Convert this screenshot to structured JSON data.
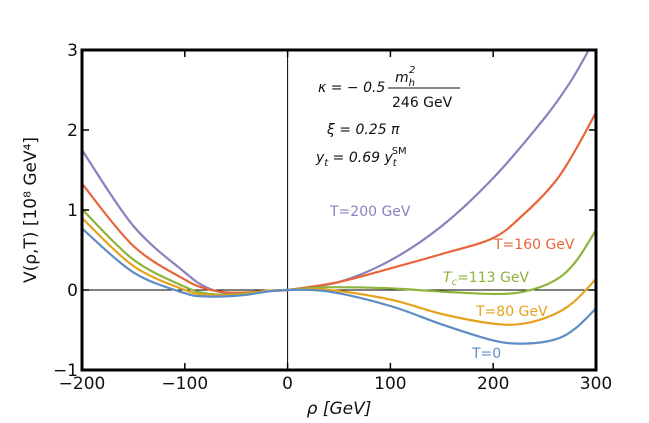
{
  "chart_data": {
    "type": "line",
    "xlabel": "ρ [GeV]",
    "ylabel": "V(ρ,T) [10⁸ GeV⁴]",
    "xlim": [
      -200,
      300
    ],
    "ylim": [
      -1,
      3
    ],
    "x_ticks": [
      -200,
      -100,
      0,
      100,
      200,
      300
    ],
    "y_ticks": [
      -1,
      0,
      1,
      2,
      3
    ],
    "tick_labels": {
      "x": [
        "−200",
        "−100",
        "0",
        "100",
        "200",
        "300"
      ],
      "y": [
        "−1",
        "0",
        "1",
        "2",
        "3"
      ]
    },
    "grid": false,
    "annotations": {
      "kappa_prefix": "κ = − 0.5",
      "kappa_num": "m",
      "kappa_num_sub": "h",
      "kappa_num_sup": "2",
      "kappa_den": "246  GeV",
      "xi": "ξ = 0.25 π",
      "yt_prefix": "y",
      "yt_sub": "t",
      "yt_mid": " = 0.69 y",
      "yt_sub2": "t",
      "yt_sup": "SM"
    },
    "series": [
      {
        "name": "T=200 GeV",
        "color": "#8c7fbc",
        "points": [
          [
            -200,
            1.75
          ],
          [
            -150,
            0.8
          ],
          [
            -100,
            0.22
          ],
          [
            -80,
            0.04
          ],
          [
            -60,
            -0.04
          ],
          [
            -40,
            -0.04
          ],
          [
            -20,
            -0.01
          ],
          [
            0,
            0
          ],
          [
            50,
            0.1
          ],
          [
            100,
            0.37
          ],
          [
            150,
            0.8
          ],
          [
            200,
            1.4
          ],
          [
            250,
            2.15
          ],
          [
            275,
            2.6
          ],
          [
            293,
            3.0
          ]
        ]
      },
      {
        "name": "T=160 GeV",
        "color": "#e8653b",
        "points": [
          [
            -200,
            1.33
          ],
          [
            -150,
            0.55
          ],
          [
            -100,
            0.13
          ],
          [
            -80,
            0.02
          ],
          [
            -60,
            -0.03
          ],
          [
            -40,
            -0.03
          ],
          [
            -20,
            -0.01
          ],
          [
            0,
            0
          ],
          [
            50,
            0.1
          ],
          [
            100,
            0.27
          ],
          [
            150,
            0.45
          ],
          [
            200,
            0.65
          ],
          [
            230,
            0.95
          ],
          [
            260,
            1.35
          ],
          [
            280,
            1.75
          ],
          [
            300,
            2.22
          ]
        ]
      },
      {
        "name": "T",
        "name_sub": "c",
        "name_rest": "=113 GeV",
        "color": "#8cb33a",
        "points": [
          [
            -200,
            1.01
          ],
          [
            -150,
            0.38
          ],
          [
            -100,
            0.04
          ],
          [
            -80,
            -0.04
          ],
          [
            -60,
            -0.06
          ],
          [
            -40,
            -0.04
          ],
          [
            -20,
            -0.01
          ],
          [
            0,
            0
          ],
          [
            25,
            0.025
          ],
          [
            50,
            0.035
          ],
          [
            100,
            0.02
          ],
          [
            150,
            -0.02
          ],
          [
            200,
            -0.05
          ],
          [
            230,
            -0.02
          ],
          [
            260,
            0.12
          ],
          [
            280,
            0.35
          ],
          [
            300,
            0.75
          ]
        ]
      },
      {
        "name": "T=80 GeV",
        "color": "#e6a11d",
        "points": [
          [
            -200,
            0.9
          ],
          [
            -150,
            0.3
          ],
          [
            -100,
            0.0
          ],
          [
            -80,
            -0.06
          ],
          [
            -60,
            -0.07
          ],
          [
            -40,
            -0.05
          ],
          [
            -20,
            -0.01
          ],
          [
            0,
            0
          ],
          [
            40,
            0.0
          ],
          [
            100,
            -0.12
          ],
          [
            150,
            -0.3
          ],
          [
            200,
            -0.42
          ],
          [
            230,
            -0.42
          ],
          [
            260,
            -0.3
          ],
          [
            280,
            -0.13
          ],
          [
            300,
            0.14
          ]
        ]
      },
      {
        "name": "T=0",
        "color": "#5d8dc4",
        "points": [
          [
            -200,
            0.77
          ],
          [
            -150,
            0.22
          ],
          [
            -100,
            -0.04
          ],
          [
            -80,
            -0.08
          ],
          [
            -60,
            -0.08
          ],
          [
            -40,
            -0.06
          ],
          [
            -20,
            -0.02
          ],
          [
            0,
            0
          ],
          [
            40,
            -0.02
          ],
          [
            100,
            -0.2
          ],
          [
            150,
            -0.43
          ],
          [
            200,
            -0.63
          ],
          [
            230,
            -0.67
          ],
          [
            260,
            -0.62
          ],
          [
            280,
            -0.48
          ],
          [
            300,
            -0.23
          ]
        ]
      }
    ]
  }
}
